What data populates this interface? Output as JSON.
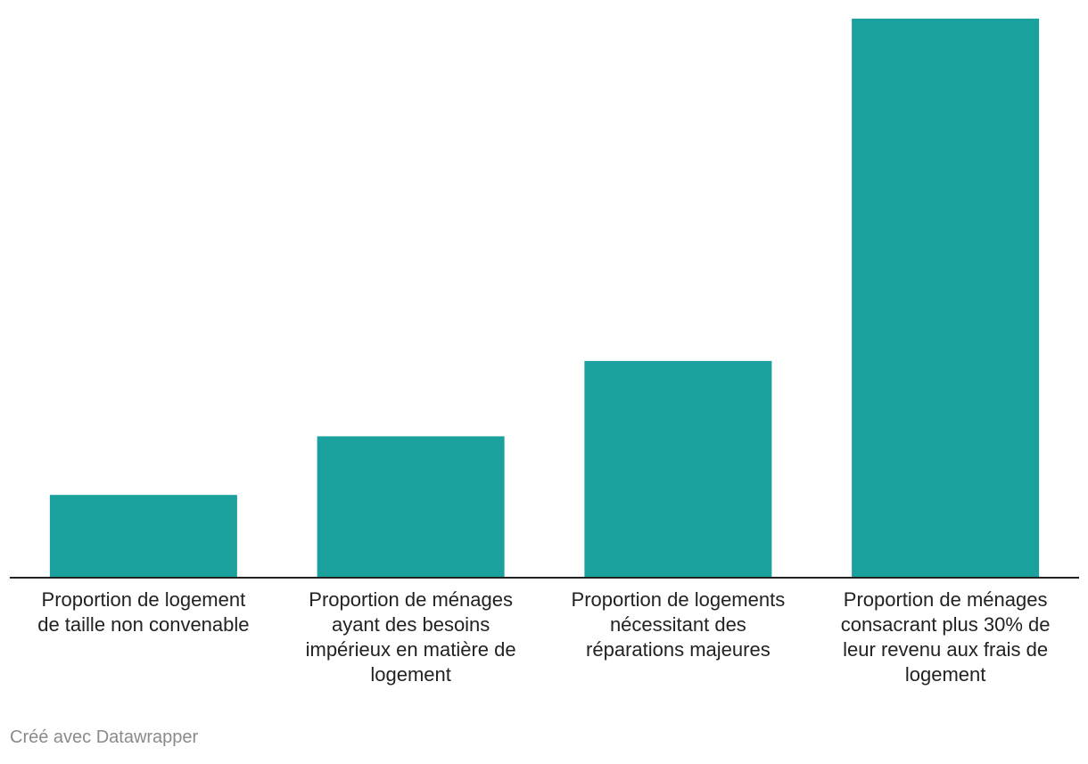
{
  "chart_data": {
    "type": "bar",
    "categories": [
      [
        "Proportion de logement",
        "de taille non convenable"
      ],
      [
        "Proportion de ménages",
        "ayant des besoins",
        "impérieux en matière de",
        "logement"
      ],
      [
        "Proportion de logements",
        "nécessitant des",
        "réparations majeures"
      ],
      [
        "Proportion de ménages",
        "consacrant plus 30% de",
        "leur revenu aux frais de",
        "logement"
      ]
    ],
    "values": [
      8.8,
      15.1,
      23.2,
      60.0
    ],
    "ylim": [
      0,
      62
    ],
    "bar_color": "#1aa19d",
    "grid": false,
    "title": "",
    "xlabel": "",
    "ylabel": ""
  },
  "credit": "Créé avec Datawrapper"
}
